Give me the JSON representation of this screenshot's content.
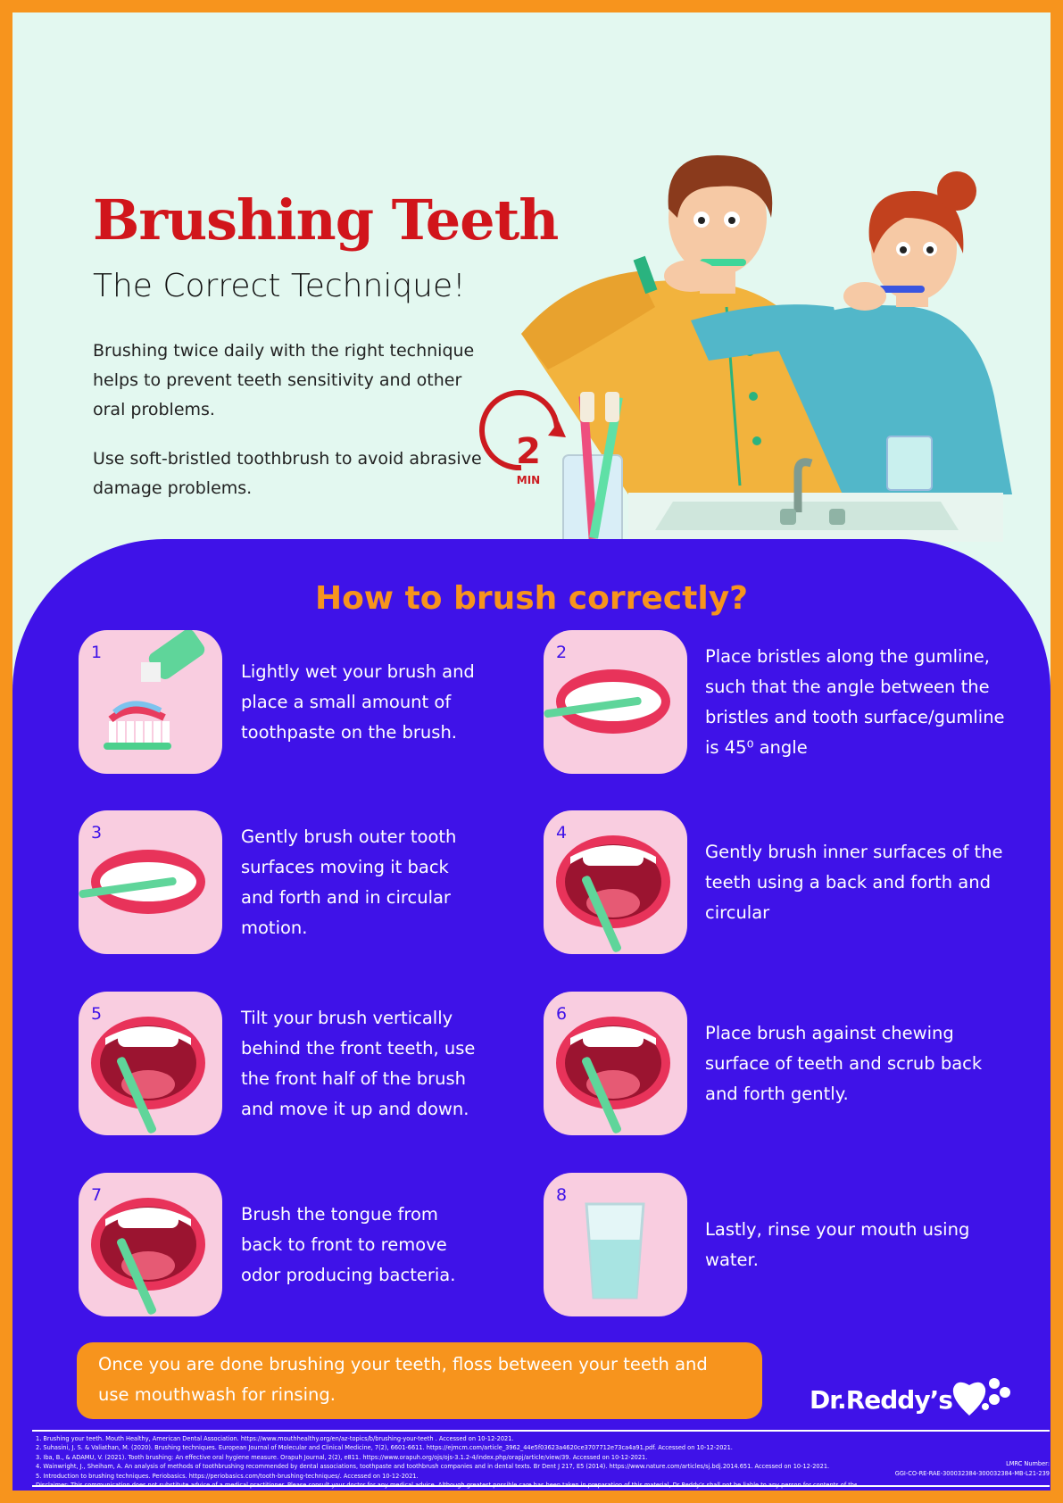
{
  "header": {
    "title": "Brushing Teeth",
    "subtitle": "The  Correct Technique!",
    "paragraphs": [
      "Brushing twice daily with the right technique helps to prevent teeth sensitivity and other oral problems.",
      "Use soft-bristled toothbrush to avoid abrasive damage problems."
    ],
    "timer": {
      "number": "2",
      "unit": "MIN"
    }
  },
  "section": {
    "title": "How to brush correctly?"
  },
  "steps": [
    {
      "number": "1",
      "text": "Lightly wet your brush and place a small amount of toothpaste on the brush."
    },
    {
      "number": "2",
      "text": "Place bristles along the gumline, such that the angle between the bristles and tooth surface/gumline is 45⁰ angle"
    },
    {
      "number": "3",
      "text": "Gently brush outer tooth surfaces moving it back and forth and in circular motion."
    },
    {
      "number": "4",
      "text": "Gently brush inner surfaces of the teeth using a back and forth and circular"
    },
    {
      "number": "5",
      "text": "Tilt your brush vertically behind the front teeth, use the front half of the brush and move it up and down."
    },
    {
      "number": "6",
      "text": "Place brush against chewing surface of teeth and scrub back and forth gently."
    },
    {
      "number": "7",
      "text": "Brush the tongue from back to front to remove odor producing bacteria."
    },
    {
      "number": "8",
      "text": "Lastly, rinse your mouth using water."
    }
  ],
  "footer": {
    "note": "Once you are done brushing your teeth, floss between your teeth and use mouthwash for rinsing.",
    "brand": "Dr.Reddy’s",
    "references": [
      "1. Brushing your teeth. Mouth Healthy, American Dental Association. https://www.mouthhealthy.org/en/az-topics/b/brushing-your-teeth . Accessed on 10-12-2021.",
      "2. Suhasini, J. S. & Valiathan, M. (2020). Brushing techniques. European Journal of Molecular and Clinical Medicine, 7(2), 6601-6611. https://ejmcm.com/article_3962_44e5f03623a4620ce3707712e73ca4a91.pdf. Accessed on 10-12-2021.",
      "3. Iba, B., & ADAMU, V. (2021). Tooth brushing: An effective oral hygiene measure. Orapuh Journal, 2(2), e811. https://www.orapuh.org/ojs/ojs-3.1.2-4/index.php/orapj/article/view/39. Accessed on 10-12-2021.",
      "4. Wainwright, J., Sheiham, A. An analysis of methods of toothbrushing recommended by dental associations, toothpaste and toothbrush companies and in dental texts. Br Dent J 217, E5 (2014). https://www.nature.com/articles/sj.bdj.2014.651. Accessed on 10-12-2021.",
      "5. Introduction to brushing techniques. Periobasics. https://periobasics.com/tooth-brushing-techniques/. Accessed on 10-12-2021.",
      "Disclaimer: This communication does not substitute advice of a medical practitioner. Please consult your doctor for any medical advice. Although greatest possible care has been taken in preparation of this material, Dr Reddy’s shall not be liable to any person for contents of the same"
    ],
    "lmrc": {
      "label": "LMRC Number:",
      "code": "GGI-CO-RE-RAE-300032384-300032384-MB-L21-239"
    }
  }
}
